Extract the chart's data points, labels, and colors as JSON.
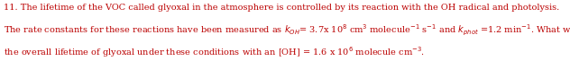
{
  "figsize": [
    6.32,
    0.78
  ],
  "dpi": 100,
  "background_color": "#ffffff",
  "text_color": "#bb0000",
  "font_family": "serif",
  "font_size": 7.0,
  "line1": "11. The lifetime of the VOC called glyoxal in the atmosphere is controlled by its reaction with the OH radical and photolysis.",
  "line2": "The rate constants for these reactions have been measured as $k_{OH}$= 3.7x 10$^{8}$ cm$^{3}$ molecule$^{-1}$ s$^{-1}$ and $k_{phot}$ =1.2 min$^{-1}$. What would",
  "line3": "the overall lifetime of glyoxal under these conditions with an [OH] = 1.6 x 10$^{6}$ molecule cm$^{-3}$."
}
